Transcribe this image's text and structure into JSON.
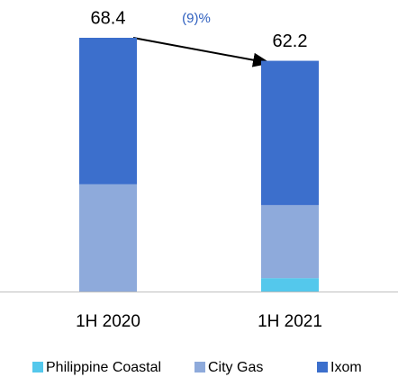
{
  "chart_data": {
    "type": "bar",
    "stacked": true,
    "categories": [
      "1H 2020",
      "1H 2021"
    ],
    "series": [
      {
        "name": "Philippine Coastal",
        "color": "#54c8ec",
        "values": [
          0,
          3.6
        ]
      },
      {
        "name": "City Gas",
        "color": "#8eaadb",
        "values": [
          28.9,
          19.7
        ]
      },
      {
        "name": "Ixom",
        "color": "#3c6fcc",
        "values": [
          39.5,
          38.9
        ]
      }
    ],
    "totals": [
      68.4,
      62.2
    ],
    "annotation": "(9)%"
  }
}
